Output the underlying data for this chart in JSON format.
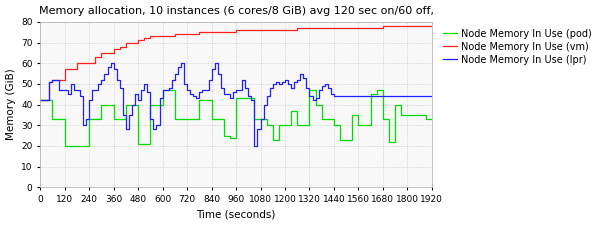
{
  "title": "Memory allocation, 10 instances (6 cores/8 GiB) avg 120 sec on/60 off,",
  "xlabel": "Time (seconds)",
  "ylabel": "Memory (GiB)",
  "xlim": [
    0,
    1920
  ],
  "ylim": [
    0,
    80
  ],
  "xticks": [
    0,
    120,
    240,
    360,
    480,
    600,
    720,
    840,
    960,
    1080,
    1200,
    1320,
    1440,
    1560,
    1680,
    1800,
    1920
  ],
  "yticks": [
    0,
    10,
    20,
    30,
    40,
    50,
    60,
    70,
    80
  ],
  "legend_labels": [
    "Node Memory In Use (pod)",
    "Node Memory In Use (vm)",
    "Node Memory In Use (lpr)"
  ],
  "legend_colors": [
    "#00dd00",
    "#ff2020",
    "#2020ff"
  ],
  "bg_color": "#ffffff",
  "plot_bg_color": "#f8f8f8",
  "grid_color": "#bbbbbb",
  "title_fontsize": 8,
  "axis_fontsize": 7.5,
  "tick_fontsize": 6.5,
  "legend_fontsize": 7,
  "line_width": 0.9
}
